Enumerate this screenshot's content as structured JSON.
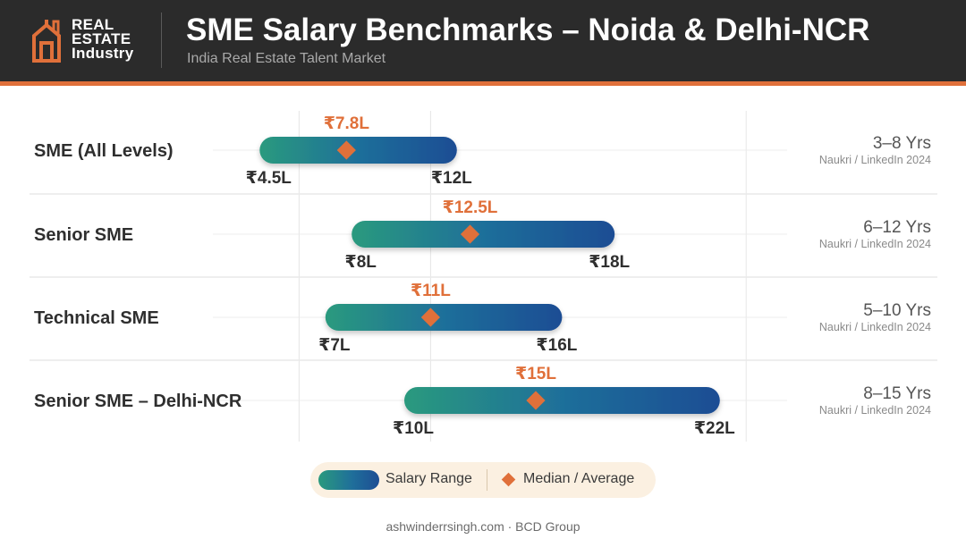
{
  "header": {
    "logo_lines": [
      "REAL",
      "ESTATE",
      "Industry"
    ],
    "title": "SME Salary Benchmarks – Noida & Delhi-NCR",
    "subtitle": "India Real Estate Talent Market"
  },
  "colors": {
    "header_bg": "#2b2b2b",
    "accent": "#e0703a",
    "bar_start": "#2a9a7e",
    "bar_end": "#1d4d94",
    "legend_bg": "#fbf0e1"
  },
  "chart_data": {
    "type": "range",
    "x_unit": "₹ Lakh per annum",
    "grid": true,
    "rows": [
      {
        "label": "SME (All Levels)",
        "min": 4.5,
        "max": 12,
        "median": 7.8,
        "min_label": "₹4.5L",
        "max_label": "₹12L",
        "median_label": "₹7.8L",
        "experience": "3–8 Yrs",
        "source": "Naukri / LinkedIn 2024"
      },
      {
        "label": "Senior SME",
        "min": 8,
        "max": 18,
        "median": 12.5,
        "min_label": "₹8L",
        "max_label": "₹18L",
        "median_label": "₹12.5L",
        "experience": "6–12 Yrs",
        "source": "Naukri / LinkedIn 2024"
      },
      {
        "label": "Technical SME",
        "min": 7,
        "max": 16,
        "median": 11,
        "min_label": "₹7L",
        "max_label": "₹16L",
        "median_label": "₹11L",
        "experience": "5–10 Yrs",
        "source": "Naukri / LinkedIn 2024"
      },
      {
        "label": "Senior SME – Delhi-NCR",
        "min": 10,
        "max": 22,
        "median": 15,
        "min_label": "₹10L",
        "max_label": "₹22L",
        "median_label": "₹15L",
        "experience": "8–15 Yrs",
        "source": "Naukri / LinkedIn 2024"
      }
    ],
    "gridlines_x": [
      6,
      11,
      23
    ],
    "legend": {
      "range": "Salary Range",
      "median": "Median / Average"
    }
  },
  "footer": {
    "text": "ashwinderrsingh.com · BCD Group"
  }
}
